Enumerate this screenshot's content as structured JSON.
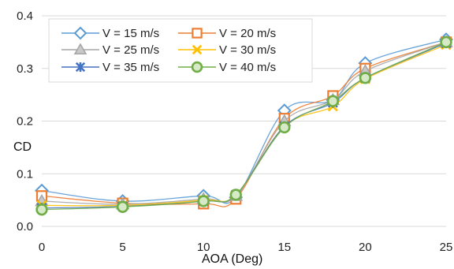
{
  "chart_data": {
    "type": "line",
    "title": "",
    "xlabel": "AOA (Deg)",
    "ylabel": "CD",
    "x": [
      0,
      5,
      10,
      12,
      15,
      18,
      20,
      25
    ],
    "xlim": [
      0,
      25
    ],
    "ylim": [
      0.0,
      0.4
    ],
    "xticks": [
      "0",
      "5",
      "10",
      "15",
      "20",
      "25"
    ],
    "yticks": [
      "0.0",
      "0.1",
      "0.2",
      "0.3",
      "0.4"
    ],
    "grid": "horizontal",
    "legend_position": "top-left",
    "series": [
      {
        "name": "V = 15 m/s",
        "color": "#5B9BD5",
        "marker": "diamond",
        "values": [
          0.068,
          0.048,
          0.058,
          0.055,
          0.22,
          0.24,
          0.31,
          0.355
        ]
      },
      {
        "name": "V = 20 m/s",
        "color": "#ED7D31",
        "marker": "square",
        "values": [
          0.058,
          0.044,
          0.043,
          0.052,
          0.205,
          0.248,
          0.3,
          0.35
        ]
      },
      {
        "name": "V = 25 m/s",
        "color": "#A5A5A5",
        "marker": "triangle",
        "values": [
          0.048,
          0.042,
          0.052,
          0.058,
          0.2,
          0.24,
          0.295,
          0.35
        ]
      },
      {
        "name": "V = 30 m/s",
        "color": "#FFC000",
        "marker": "x",
        "values": [
          0.04,
          0.04,
          0.05,
          0.06,
          0.19,
          0.228,
          0.28,
          0.345
        ]
      },
      {
        "name": "V = 35 m/s",
        "color": "#4472C4",
        "marker": "star",
        "values": [
          0.035,
          0.038,
          0.048,
          0.06,
          0.19,
          0.235,
          0.282,
          0.348
        ]
      },
      {
        "name": "V = 40 m/s",
        "color": "#70AD47",
        "marker": "circle",
        "values": [
          0.032,
          0.037,
          0.048,
          0.06,
          0.188,
          0.238,
          0.282,
          0.35
        ]
      }
    ]
  }
}
